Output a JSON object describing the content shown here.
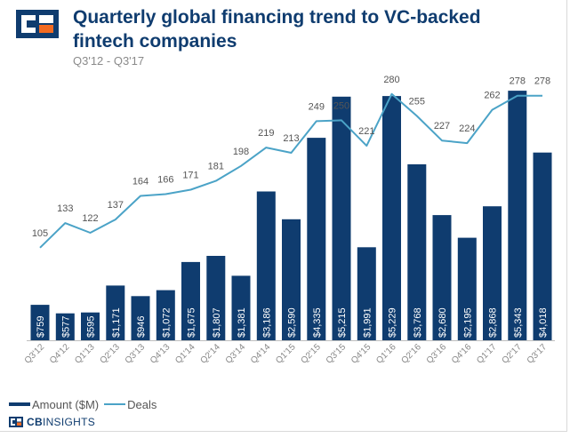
{
  "header": {
    "title": "Quarterly global financing trend to VC-backed fintech companies",
    "subtitle": "Q3'12 - Q3'17"
  },
  "brand": {
    "prefix": "CB",
    "suffix": "INSIGHTS"
  },
  "colors": {
    "bar": "#0f3c6f",
    "line": "#4ba3c7",
    "title": "#0f3c6f",
    "logo_orange": "#f26a21"
  },
  "chart_data": {
    "type": "bar",
    "categories": [
      "Q3'12",
      "Q4'12",
      "Q1'13",
      "Q2'13",
      "Q3'13",
      "Q4'13",
      "Q1'14",
      "Q2'14",
      "Q3'14",
      "Q4'14",
      "Q1'15",
      "Q2'15",
      "Q3'15",
      "Q4'15",
      "Q1'16",
      "Q2'16",
      "Q3'16",
      "Q4'16",
      "Q1'17",
      "Q2'17",
      "Q3'17"
    ],
    "series": [
      {
        "name": "Amount ($M)",
        "type": "bar",
        "values": [
          759,
          577,
          595,
          1171,
          946,
          1072,
          1675,
          1807,
          1381,
          3186,
          2590,
          4335,
          5215,
          1991,
          5229,
          3768,
          2680,
          2195,
          2868,
          5343,
          4018
        ],
        "labels": [
          "$759",
          "$577",
          "$595",
          "$1,171",
          "$946",
          "$1,072",
          "$1,675",
          "$1,807",
          "$1,381",
          "$3,186",
          "$2,590",
          "$4,335",
          "$5,215",
          "$1,991",
          "$5,229",
          "$3,768",
          "$2,680",
          "$2,195",
          "$2,868",
          "$5,343",
          "$4,018"
        ]
      },
      {
        "name": "Deals",
        "type": "line",
        "values": [
          105,
          133,
          122,
          137,
          164,
          166,
          171,
          181,
          198,
          219,
          213,
          249,
          250,
          221,
          280,
          255,
          227,
          224,
          262,
          278,
          278
        ]
      }
    ],
    "legend_position": "bottom-left",
    "grid": false
  }
}
